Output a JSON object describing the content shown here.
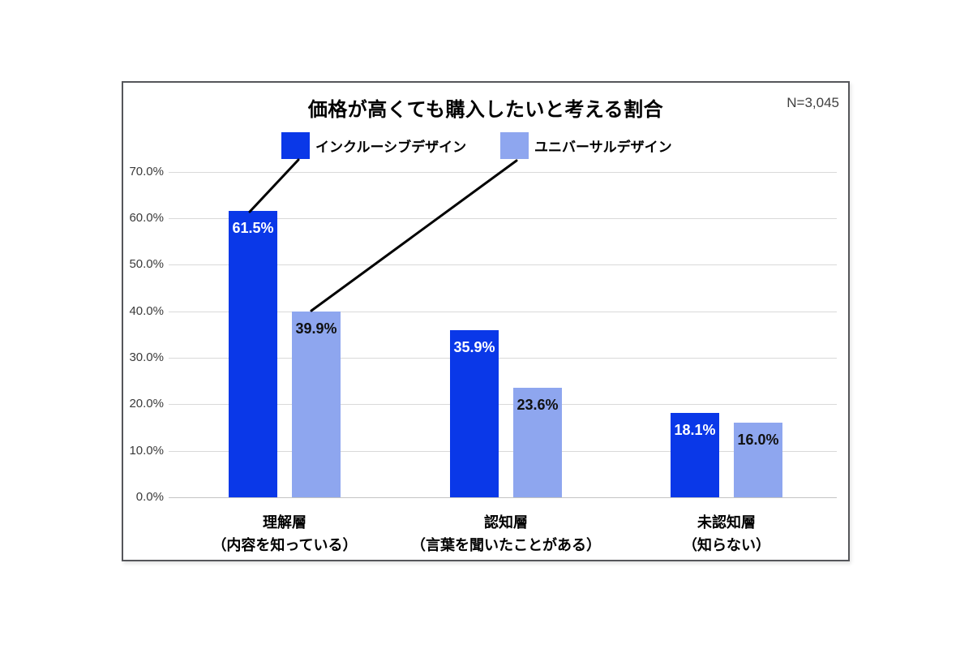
{
  "chart_data": {
    "type": "bar",
    "title": "価格が高くても購入したいと考える割合",
    "n_label": "N=3,045",
    "categories": [
      {
        "name": "理解層",
        "sub": "（内容を知っている）"
      },
      {
        "name": "認知層",
        "sub": "（言葉を聞いたことがある）"
      },
      {
        "name": "未認知層",
        "sub": "（知らない）"
      }
    ],
    "series": [
      {
        "name": "インクルーシブデザイン",
        "color": "#0A38E8",
        "label_color": "#FFFFFF",
        "values": [
          61.5,
          35.9,
          18.1
        ],
        "labels": [
          "61.5%",
          "35.9%",
          "18.1%"
        ]
      },
      {
        "name": "ユニバーサルデザイン",
        "color": "#8EA6EF",
        "label_color": "#111111",
        "values": [
          39.9,
          23.6,
          16.0
        ],
        "labels": [
          "39.9%",
          "23.6%",
          "16.0%"
        ]
      }
    ],
    "xlabel": "",
    "ylabel": "",
    "ylim": [
      0,
      70
    ],
    "grid": true,
    "legend_position": "top",
    "yticks": [
      {
        "value": 0,
        "label": "0.0%"
      },
      {
        "value": 10,
        "label": "10.0%"
      },
      {
        "value": 20,
        "label": "20.0%"
      },
      {
        "value": 30,
        "label": "30.0%"
      },
      {
        "value": 40,
        "label": "40.0%"
      },
      {
        "value": 50,
        "label": "50.0%"
      },
      {
        "value": 60,
        "label": "60.0%"
      },
      {
        "value": 70,
        "label": "70.0%"
      }
    ]
  },
  "colors": {
    "gridline": "#D9D9D9",
    "axis_baseline": "#C3C3C3",
    "panel_border": "#55565A",
    "title_text": "#000000",
    "n_text": "#3F3F3F",
    "leader_line": "#000000"
  }
}
